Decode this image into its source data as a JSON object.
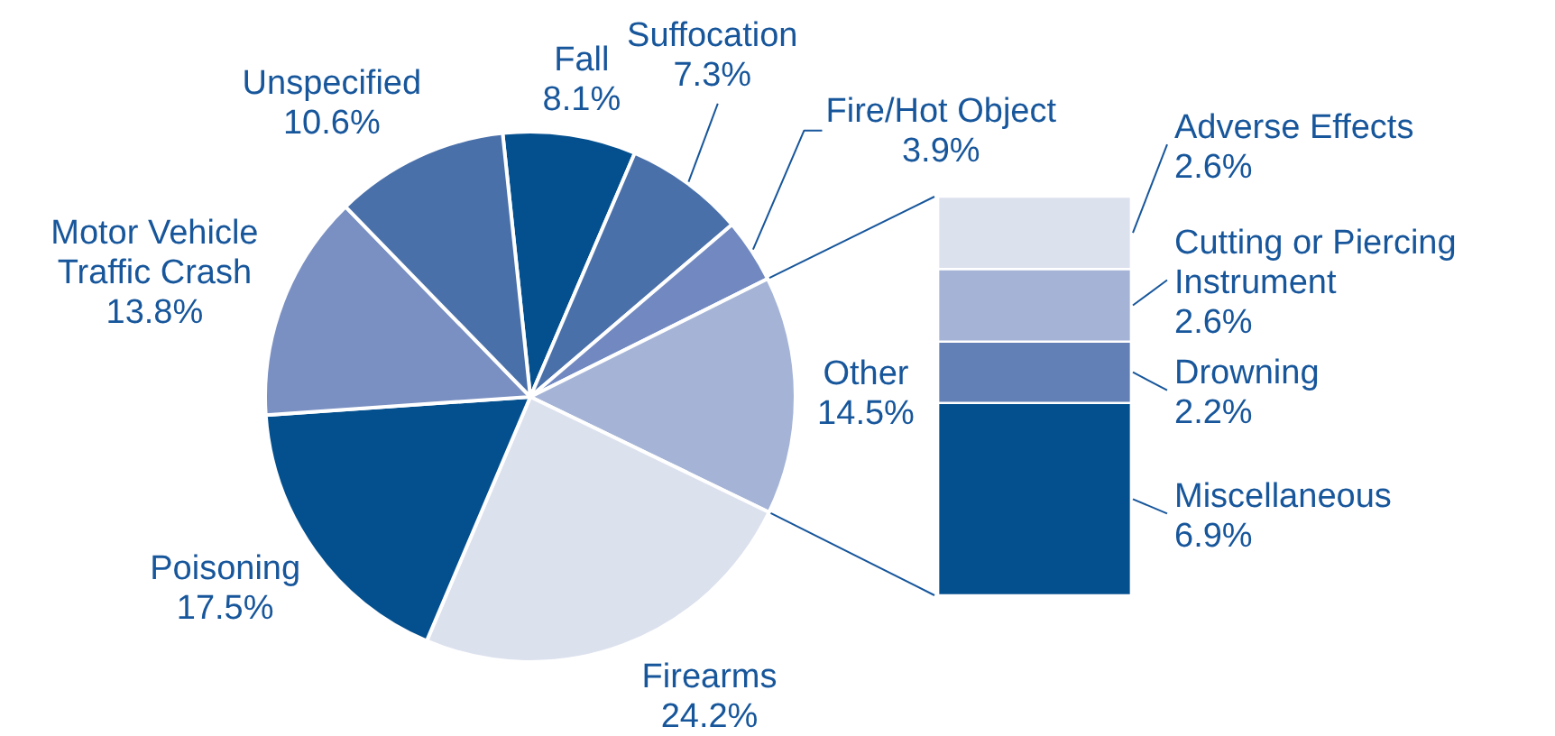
{
  "chart_data": [
    {
      "type": "pie",
      "categories": [
        "Fall",
        "Suffocation",
        "Fire/Hot Object",
        "Other",
        "Firearms",
        "Poisoning",
        "Motor Vehicle Traffic Crash",
        "Unspecified"
      ],
      "values": [
        8.1,
        7.3,
        3.9,
        14.5,
        24.2,
        17.5,
        13.8,
        10.6
      ],
      "colors": [
        "#04508f",
        "#4a70aa",
        "#7189c0",
        "#a5b4d6",
        "#dce1ee",
        "#04508f",
        "#7a90c2",
        "#4a70aa"
      ],
      "value_labels": [
        "8.1%",
        "7.3%",
        "3.9%",
        "14.5%",
        "24.2%",
        "17.5%",
        "13.8%",
        "10.6%"
      ]
    },
    {
      "type": "bar",
      "stacked": true,
      "categories": [
        null
      ],
      "tick_labels": false,
      "series": [
        {
          "name": "Miscellaneous",
          "color": "#04508f",
          "values": [
            6.9
          ],
          "value_labels": [
            "6.9%"
          ]
        },
        {
          "name": "Drowning",
          "color": "#6380b6",
          "values": [
            2.2
          ],
          "value_labels": [
            "2.2%"
          ]
        },
        {
          "name": "Cutting or Piercing Instrument",
          "color": "#a5b4d6",
          "values": [
            2.6
          ],
          "value_labels": [
            "2.6%"
          ]
        },
        {
          "name": "Adverse Effects",
          "color": "#dce1ee",
          "values": [
            2.6
          ],
          "value_labels": [
            "2.6%"
          ]
        }
      ]
    }
  ]
}
